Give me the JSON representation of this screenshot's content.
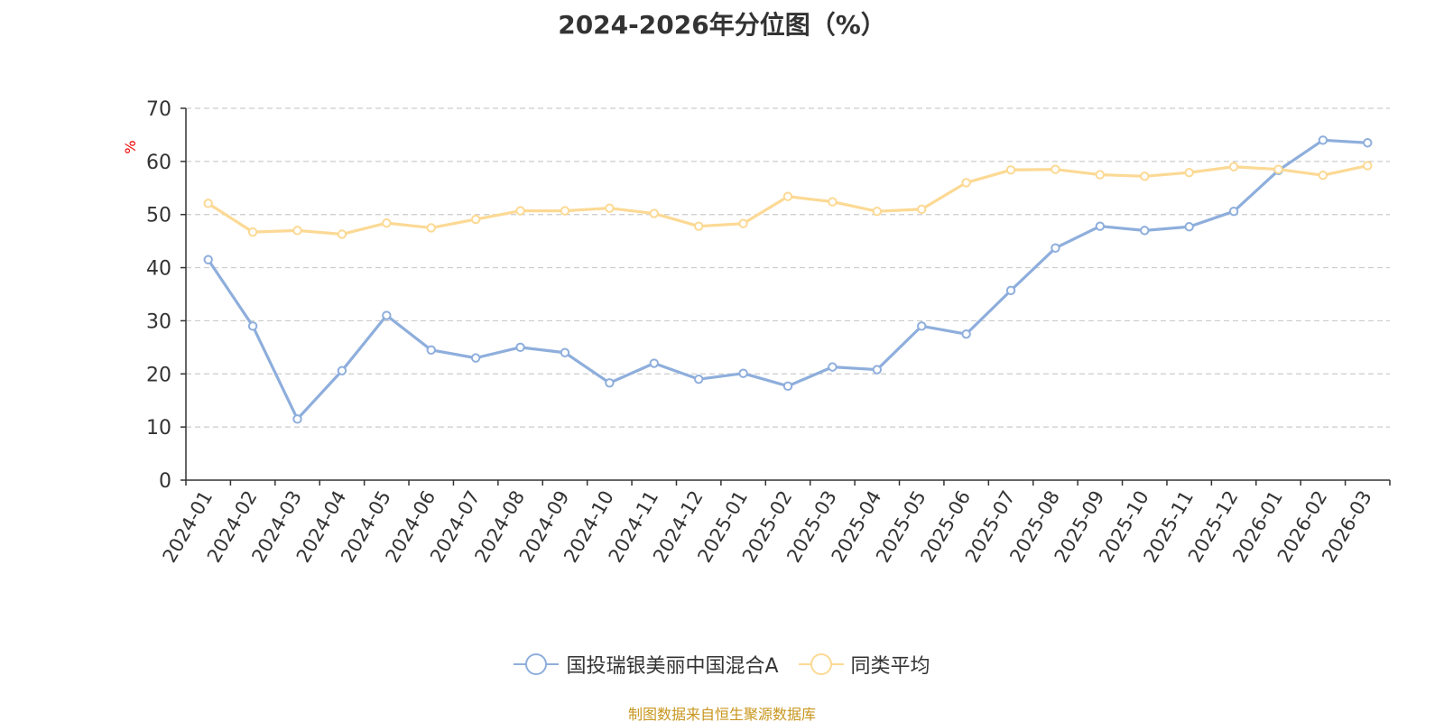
{
  "chart_data": {
    "type": "line",
    "title": "2024-2026年分位图（%）",
    "ylabel": "%",
    "xlabel": "",
    "ylim": [
      0,
      70
    ],
    "yticks": [
      0,
      10,
      20,
      30,
      40,
      50,
      60,
      70
    ],
    "grid": true,
    "legend_position": "bottom",
    "categories": [
      "2024-01",
      "2024-02",
      "2024-03",
      "2024-04",
      "2024-05",
      "2024-06",
      "2024-07",
      "2024-08",
      "2024-09",
      "2024-10",
      "2024-11",
      "2024-12",
      "2025-01",
      "2025-02",
      "2025-03",
      "2025-04",
      "2025-05",
      "2025-06",
      "2025-07",
      "2025-08",
      "2025-09",
      "2025-10",
      "2025-11",
      "2025-12",
      "2026-01",
      "2026-02",
      "2026-03"
    ],
    "series": [
      {
        "name": "国投瑞银美丽中国混合A",
        "color": "#8eaedc",
        "values": [
          41.5,
          29.0,
          11.5,
          20.6,
          31.0,
          24.5,
          23.0,
          25.0,
          24.0,
          18.3,
          22.0,
          19.0,
          20.1,
          17.7,
          21.3,
          20.8,
          29.0,
          27.5,
          35.7,
          43.7,
          47.8,
          47.0,
          47.7,
          50.6,
          58.3,
          64.0,
          63.5
        ]
      },
      {
        "name": "同类平均",
        "color": "#fcd994",
        "values": [
          52.1,
          46.7,
          47.0,
          46.3,
          48.4,
          47.5,
          49.1,
          50.7,
          50.7,
          51.2,
          50.2,
          47.8,
          48.3,
          53.4,
          52.4,
          50.6,
          51.0,
          56.0,
          58.4,
          58.5,
          57.5,
          57.2,
          57.9,
          59.0,
          58.5,
          57.4,
          59.2
        ]
      }
    ]
  },
  "source_text": "制图数据来自恒生聚源数据库"
}
